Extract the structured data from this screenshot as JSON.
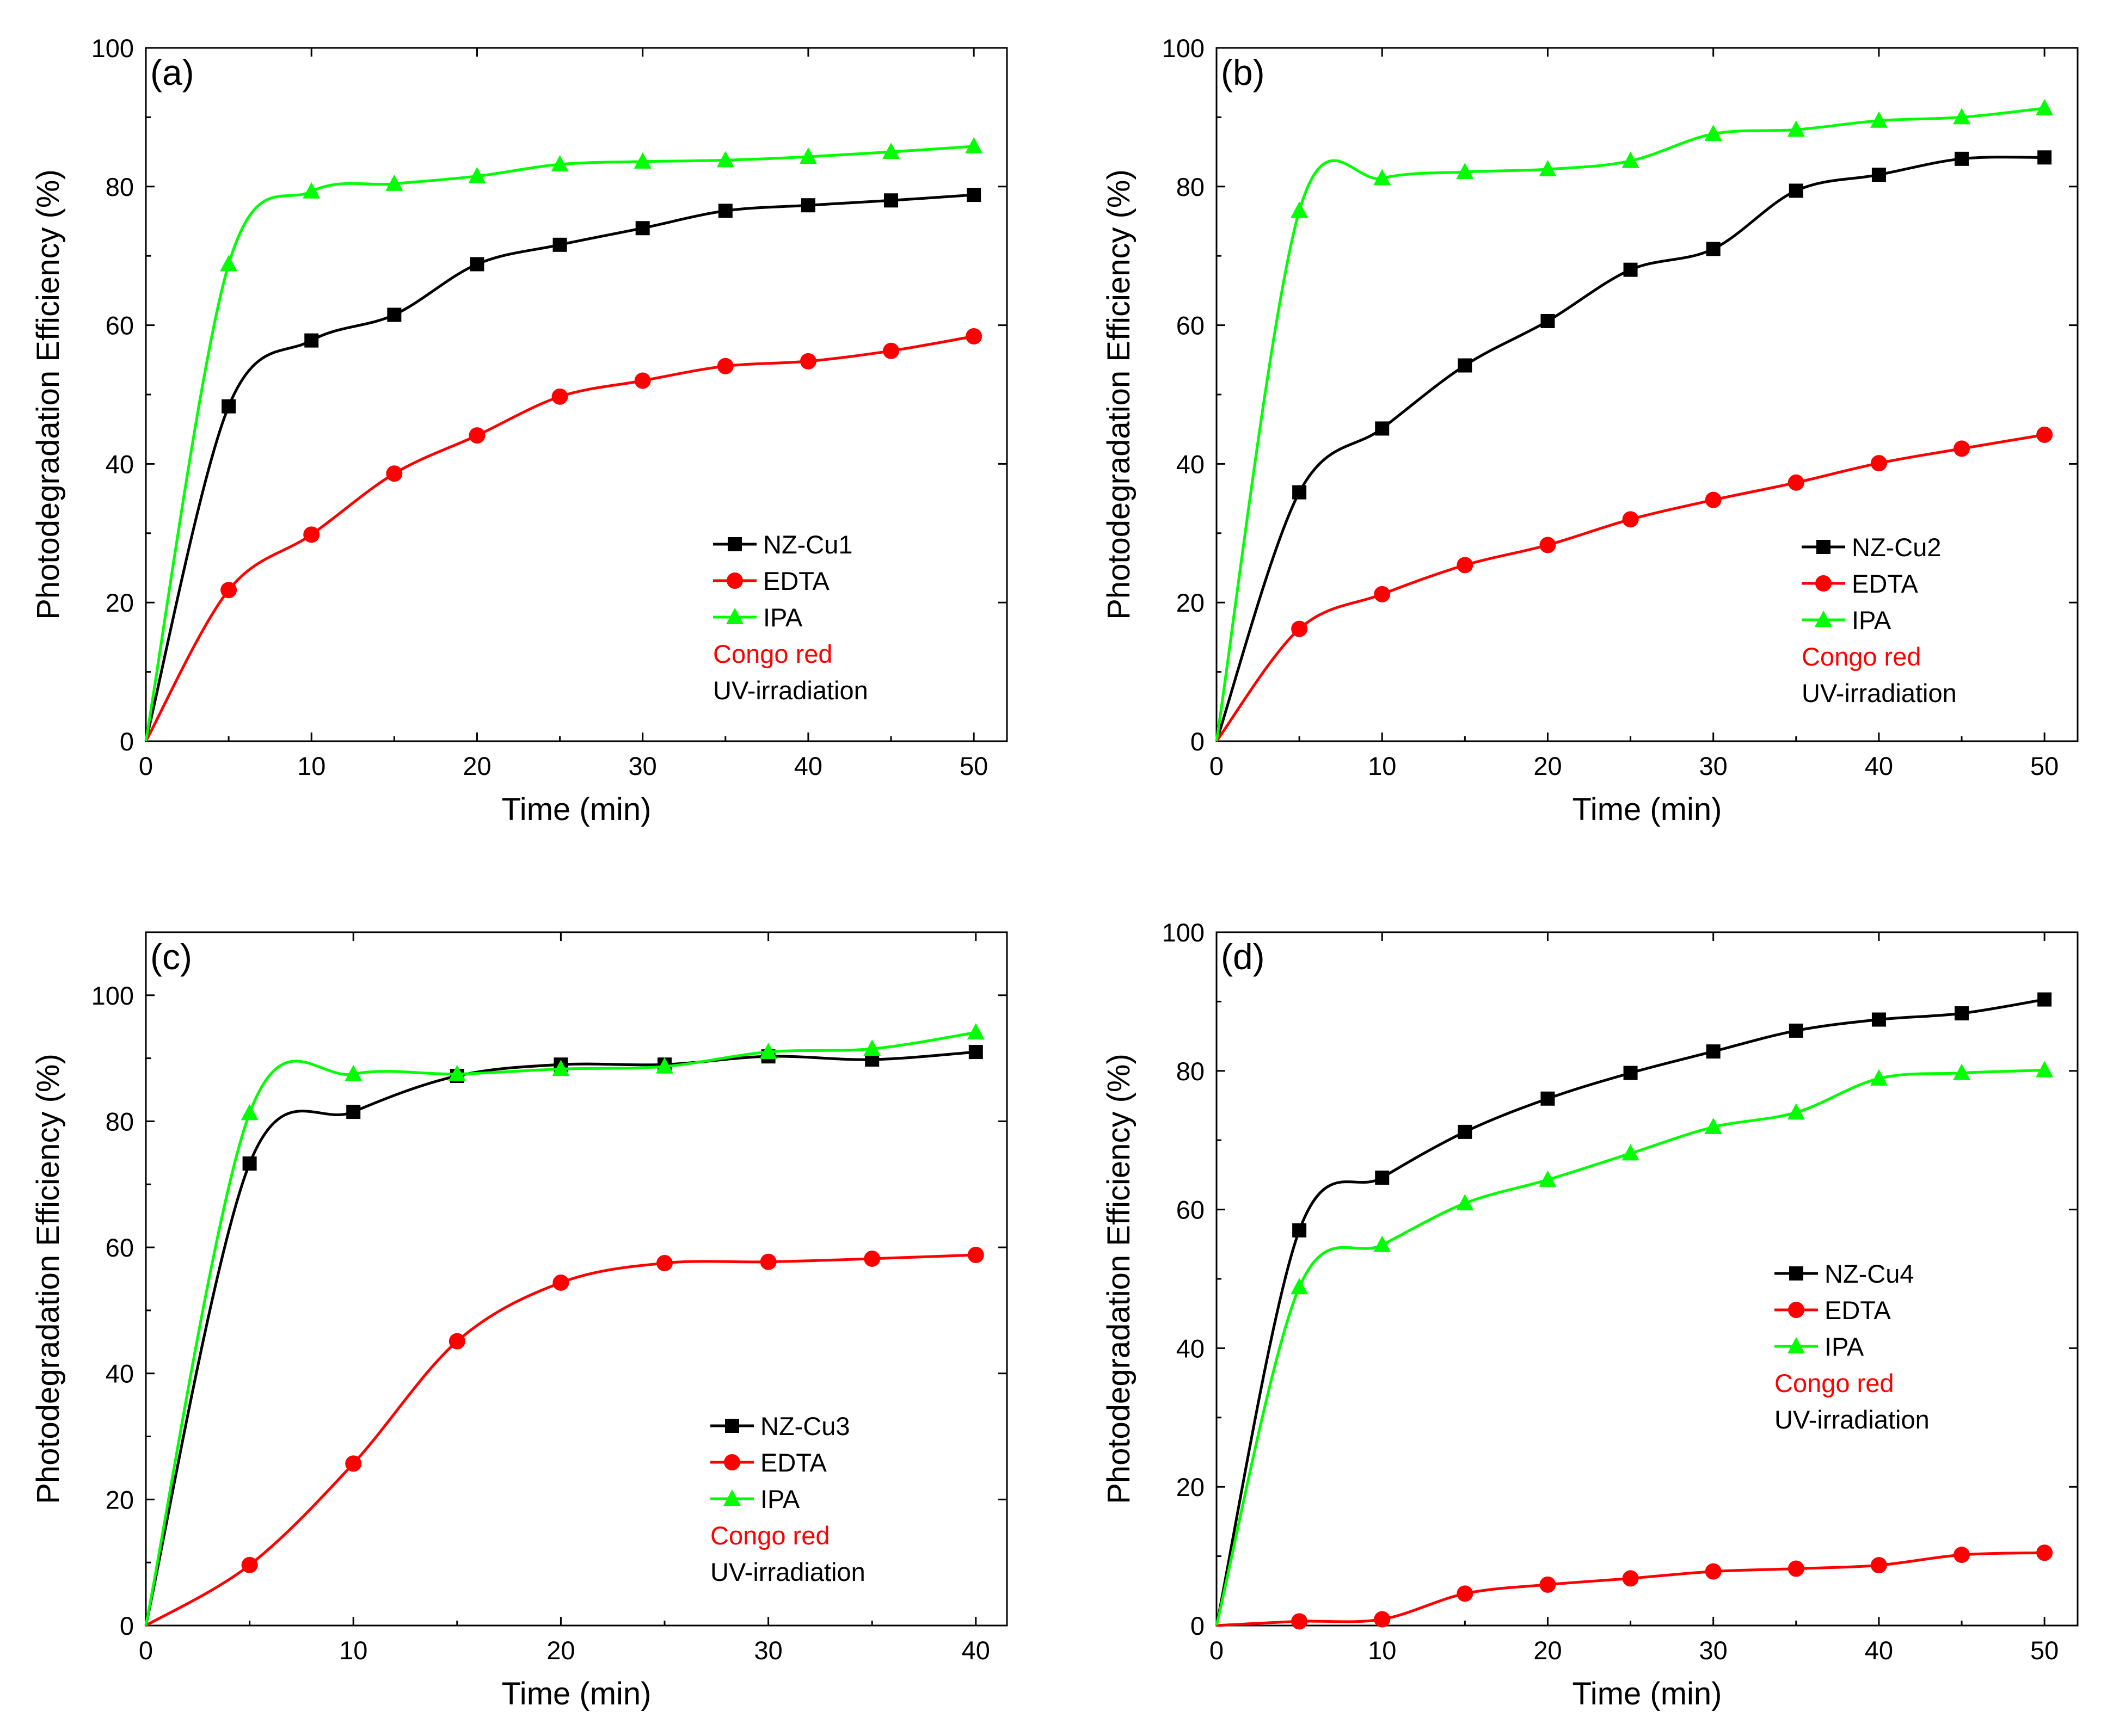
{
  "chart_data": [
    {
      "panel": "(a)",
      "type": "line",
      "xlabel": "Time (min)",
      "ylabel": "Photodegradation Efficiency (%)",
      "xlim": [
        0,
        52
      ],
      "ylim": [
        0,
        100
      ],
      "xticks": [
        0,
        10,
        20,
        30,
        40,
        50
      ],
      "yticks": [
        0,
        20,
        40,
        60,
        80,
        100
      ],
      "series": [
        {
          "name": "NZ-Cu1",
          "color": "#000000",
          "marker": "square",
          "x": [
            0,
            5,
            10,
            15,
            20,
            25,
            30,
            35,
            40,
            45,
            50
          ],
          "y": [
            0,
            48.3,
            57.8,
            61.5,
            68.8,
            71.6,
            74.0,
            76.5,
            77.3,
            78.0,
            78.8
          ]
        },
        {
          "name": "EDTA",
          "color": "#ff0000",
          "marker": "circle",
          "x": [
            0,
            5,
            10,
            15,
            20,
            25,
            30,
            35,
            40,
            45,
            50
          ],
          "y": [
            0,
            21.8,
            29.8,
            38.6,
            44.1,
            49.7,
            52.0,
            54.1,
            54.8,
            56.3,
            58.4
          ]
        },
        {
          "name": "IPA",
          "color": "#00ff00",
          "marker": "triangle",
          "x": [
            0,
            5,
            10,
            15,
            20,
            25,
            30,
            35,
            40,
            45,
            50
          ],
          "y": [
            0,
            68.8,
            79.3,
            80.4,
            81.5,
            83.2,
            83.6,
            83.8,
            84.3,
            85.0,
            85.8
          ]
        }
      ],
      "notes": [
        {
          "text": "Congo red",
          "color": "#ff0000"
        },
        {
          "text": "UV-irradiation",
          "color": "#000000"
        }
      ]
    },
    {
      "panel": "(b)",
      "type": "line",
      "xlabel": "Time (min)",
      "ylabel": "Photodegradation Efficiency (%)",
      "xlim": [
        0,
        52
      ],
      "ylim": [
        0,
        100
      ],
      "xticks": [
        0,
        10,
        20,
        30,
        40,
        50
      ],
      "yticks": [
        0,
        20,
        40,
        60,
        80,
        100
      ],
      "series": [
        {
          "name": "NZ-Cu2",
          "color": "#000000",
          "marker": "square",
          "x": [
            0,
            5,
            10,
            15,
            20,
            25,
            30,
            35,
            40,
            45,
            50
          ],
          "y": [
            0,
            35.9,
            45.1,
            54.2,
            60.6,
            68.0,
            71.0,
            79.4,
            81.7,
            84.0,
            84.2
          ]
        },
        {
          "name": "EDTA",
          "color": "#ff0000",
          "marker": "circle",
          "x": [
            0,
            5,
            10,
            15,
            20,
            25,
            30,
            35,
            40,
            45,
            50
          ],
          "y": [
            0,
            16.2,
            21.2,
            25.4,
            28.3,
            32.0,
            34.8,
            37.3,
            40.1,
            42.2,
            44.2
          ]
        },
        {
          "name": "IPA",
          "color": "#00ff00",
          "marker": "triangle",
          "x": [
            0,
            5,
            10,
            15,
            20,
            25,
            30,
            35,
            40,
            45,
            50
          ],
          "y": [
            0,
            76.5,
            81.2,
            82.1,
            82.5,
            83.7,
            87.6,
            88.2,
            89.5,
            90.0,
            91.3
          ]
        }
      ],
      "notes": [
        {
          "text": "Congo red",
          "color": "#ff0000"
        },
        {
          "text": "UV-irradiation",
          "color": "#000000"
        }
      ]
    },
    {
      "panel": "(c)",
      "type": "line",
      "xlabel": "Time (min)",
      "ylabel": "Photodegradation Efficiency (%)",
      "xlim": [
        0,
        41.5
      ],
      "ylim": [
        0,
        110
      ],
      "xticks": [
        0,
        10,
        20,
        30,
        40
      ],
      "yticks": [
        0,
        20,
        40,
        60,
        80,
        100
      ],
      "series": [
        {
          "name": "NZ-Cu3",
          "color": "#000000",
          "marker": "square",
          "x": [
            0,
            5,
            10,
            15,
            20,
            25,
            30,
            35,
            40
          ],
          "y": [
            0,
            73.3,
            81.5,
            87.2,
            89.0,
            89.0,
            90.3,
            89.8,
            91.0
          ]
        },
        {
          "name": "EDTA",
          "color": "#ff0000",
          "marker": "circle",
          "x": [
            0,
            5,
            10,
            15,
            20,
            25,
            30,
            35,
            40
          ],
          "y": [
            0,
            9.6,
            25.7,
            45.1,
            54.4,
            57.5,
            57.7,
            58.2,
            58.8
          ]
        },
        {
          "name": "IPA",
          "color": "#00ff00",
          "marker": "triangle",
          "x": [
            0,
            5,
            10,
            15,
            20,
            25,
            30,
            35,
            40
          ],
          "y": [
            0,
            81.3,
            87.5,
            87.5,
            88.3,
            88.7,
            91.0,
            91.5,
            94.1
          ]
        }
      ],
      "notes": [
        {
          "text": "Congo red",
          "color": "#ff0000"
        },
        {
          "text": "UV-irradiation",
          "color": "#000000"
        }
      ]
    },
    {
      "panel": "(d)",
      "type": "line",
      "xlabel": "Time (min)",
      "ylabel": "Photodegradation Efficiency (%)",
      "xlim": [
        0,
        52
      ],
      "ylim": [
        0,
        100
      ],
      "xticks": [
        0,
        10,
        20,
        30,
        40,
        50
      ],
      "yticks": [
        0,
        20,
        40,
        60,
        80,
        100
      ],
      "series": [
        {
          "name": "NZ-Cu4",
          "color": "#000000",
          "marker": "square",
          "x": [
            0,
            5,
            10,
            15,
            20,
            25,
            30,
            35,
            40,
            45,
            50
          ],
          "y": [
            0,
            57.0,
            64.6,
            71.2,
            76.0,
            79.7,
            82.8,
            85.8,
            87.4,
            88.3,
            90.3
          ]
        },
        {
          "name": "EDTA",
          "color": "#ff0000",
          "marker": "circle",
          "x": [
            0,
            5,
            10,
            15,
            20,
            25,
            30,
            35,
            40,
            45,
            50
          ],
          "y": [
            0,
            0.6,
            0.9,
            4.6,
            5.9,
            6.8,
            7.8,
            8.2,
            8.7,
            10.2,
            10.5
          ]
        },
        {
          "name": "IPA",
          "color": "#00ff00",
          "marker": "triangle",
          "x": [
            0,
            5,
            10,
            15,
            20,
            25,
            30,
            35,
            40,
            45,
            50
          ],
          "y": [
            0,
            48.8,
            54.9,
            60.9,
            64.3,
            68.1,
            71.9,
            74.0,
            78.9,
            79.7,
            80.1
          ]
        }
      ],
      "notes": [
        {
          "text": "Congo red",
          "color": "#ff0000"
        },
        {
          "text": "UV-irradiation",
          "color": "#000000"
        }
      ]
    }
  ]
}
